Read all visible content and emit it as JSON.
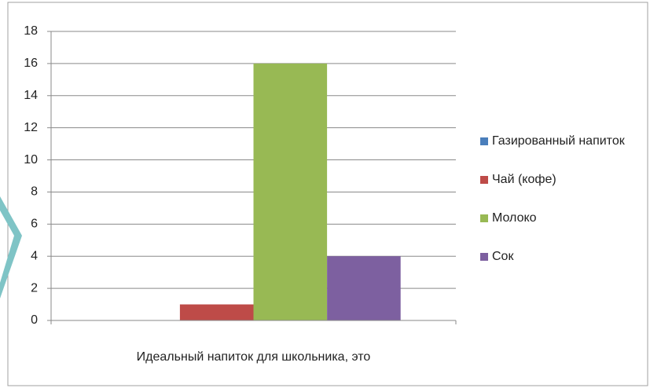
{
  "chart_data": {
    "type": "bar",
    "categories": [
      "Идеальный напиток для школьника, это"
    ],
    "series": [
      {
        "name": "Газированный напиток",
        "color": "#4a7ebb",
        "values": [
          0
        ]
      },
      {
        "name": "Чай (кофе)",
        "color": "#be4b48",
        "values": [
          1
        ]
      },
      {
        "name": "Молоко",
        "color": "#98b954",
        "values": [
          16
        ]
      },
      {
        "name": "Сок",
        "color": "#7d60a0",
        "values": [
          4
        ]
      }
    ],
    "ylim": [
      0,
      18
    ],
    "yticks": [
      0,
      2,
      4,
      6,
      8,
      10,
      12,
      14,
      16,
      18
    ],
    "grid": true,
    "legend": "right"
  }
}
